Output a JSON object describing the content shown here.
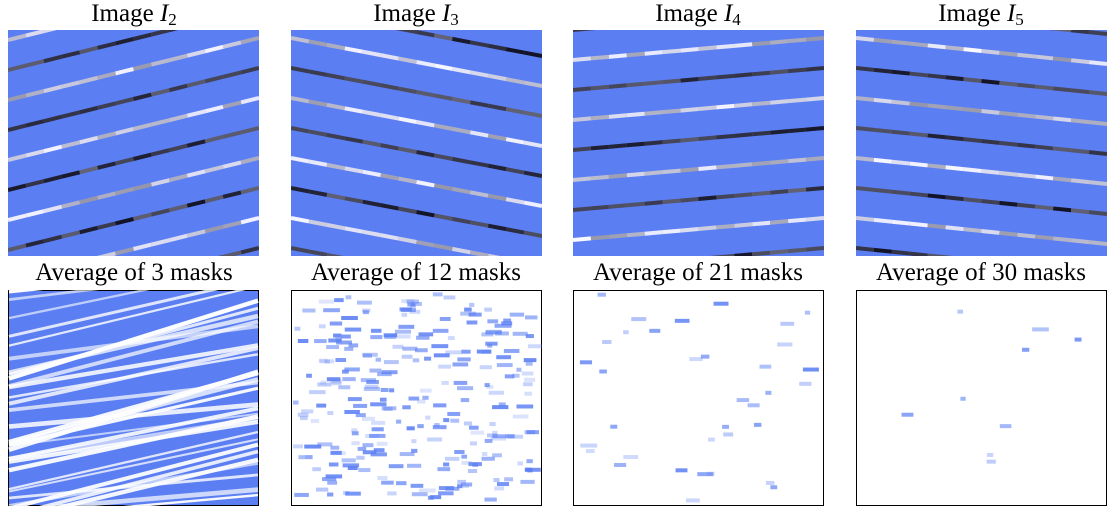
{
  "top_row": [
    {
      "prefix": "Image",
      "variable": "I",
      "subscript": "2"
    },
    {
      "prefix": "Image",
      "variable": "I",
      "subscript": "3"
    },
    {
      "prefix": "Image",
      "variable": "I",
      "subscript": "4"
    },
    {
      "prefix": "Image",
      "variable": "I",
      "subscript": "5"
    }
  ],
  "bottom_row": [
    "Average of 3 masks",
    "Average of 12 masks",
    "Average of 21 masks",
    "Average of 30 masks"
  ]
}
